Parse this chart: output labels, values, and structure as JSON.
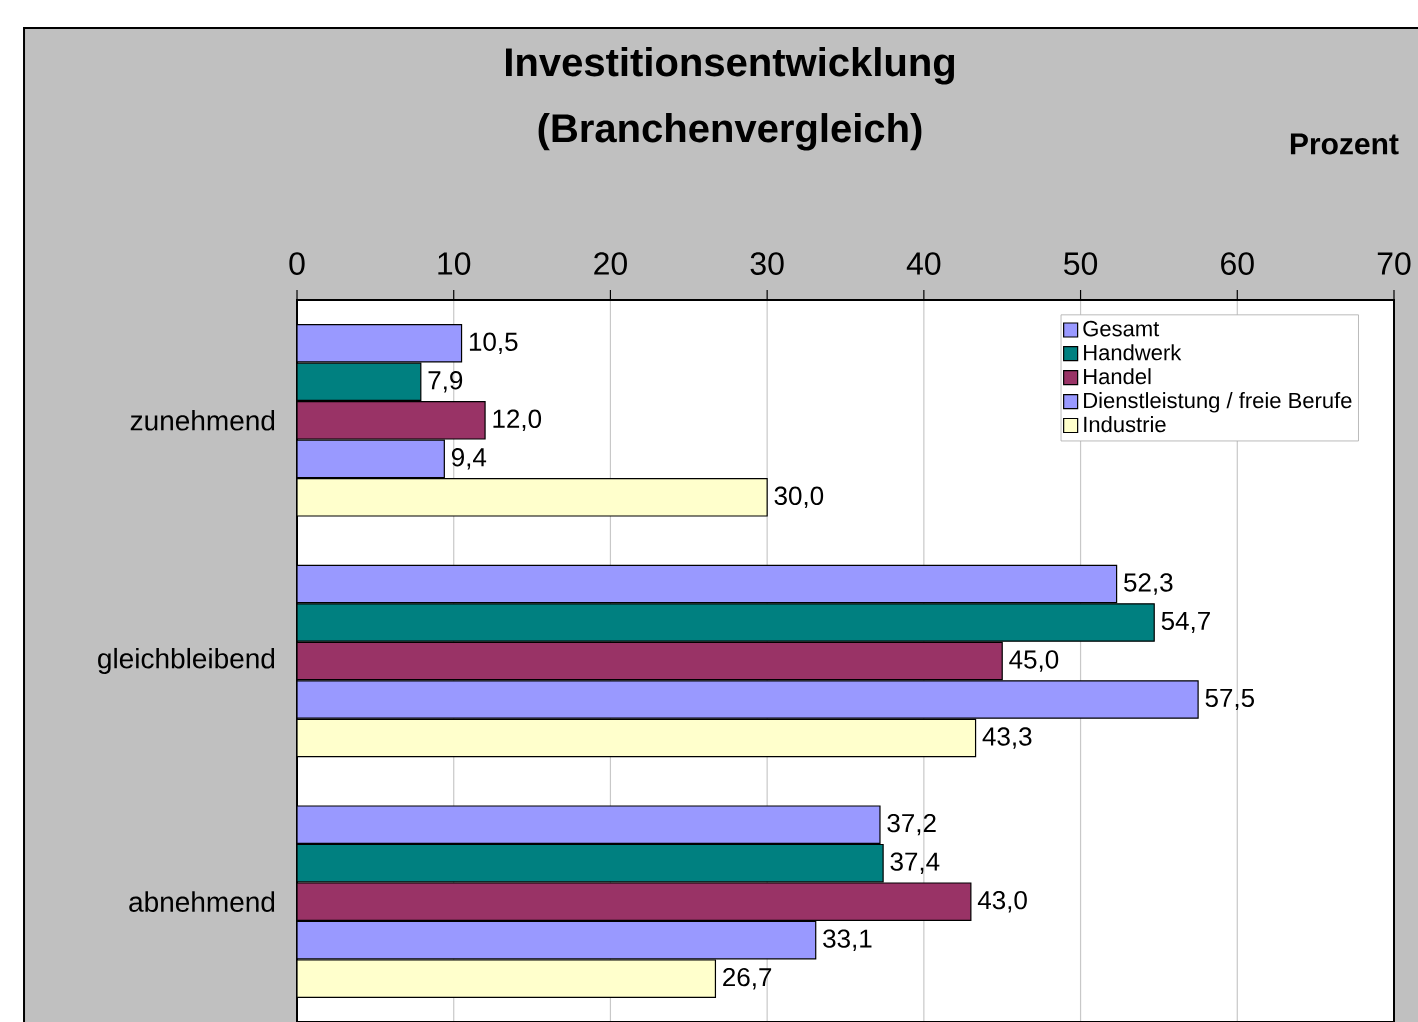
{
  "chart_data": {
    "type": "bar",
    "orientation": "horizontal",
    "title": "Investitionsentwicklung (Branchenvergleich)",
    "xlabel": "Prozent",
    "categories": [
      "zunehmend",
      "gleichbleibend",
      "abnehmend"
    ],
    "series": [
      {
        "name": "Gesamt",
        "color": "#9999ff",
        "values": [
          10.5,
          52.3,
          37.2
        ],
        "value_labels": [
          "10,5",
          "52,3",
          "37,2"
        ]
      },
      {
        "name": "Handwerk",
        "color": "#008080",
        "values": [
          7.9,
          54.7,
          37.4
        ],
        "value_labels": [
          "7,9",
          "54,7",
          "37,4"
        ]
      },
      {
        "name": "Handel",
        "color": "#993366",
        "values": [
          12.0,
          45.0,
          43.0
        ],
        "value_labels": [
          "12,0",
          "45,0",
          "43,0"
        ]
      },
      {
        "name": "Dienstleistung / freie Berufe",
        "color": "#9999ff",
        "values": [
          9.4,
          57.5,
          33.1
        ],
        "value_labels": [
          "9,4",
          "57,5",
          "33,1"
        ]
      },
      {
        "name": "Industrie",
        "color": "#ffffcc",
        "values": [
          30.0,
          43.3,
          26.7
        ],
        "value_labels": [
          "30,0",
          "43,3",
          "26,7"
        ]
      }
    ],
    "xlim": [
      0,
      70
    ],
    "xticks": [
      0,
      10,
      20,
      30,
      40,
      50,
      60,
      70
    ],
    "grid": "x",
    "legend": "top right"
  }
}
